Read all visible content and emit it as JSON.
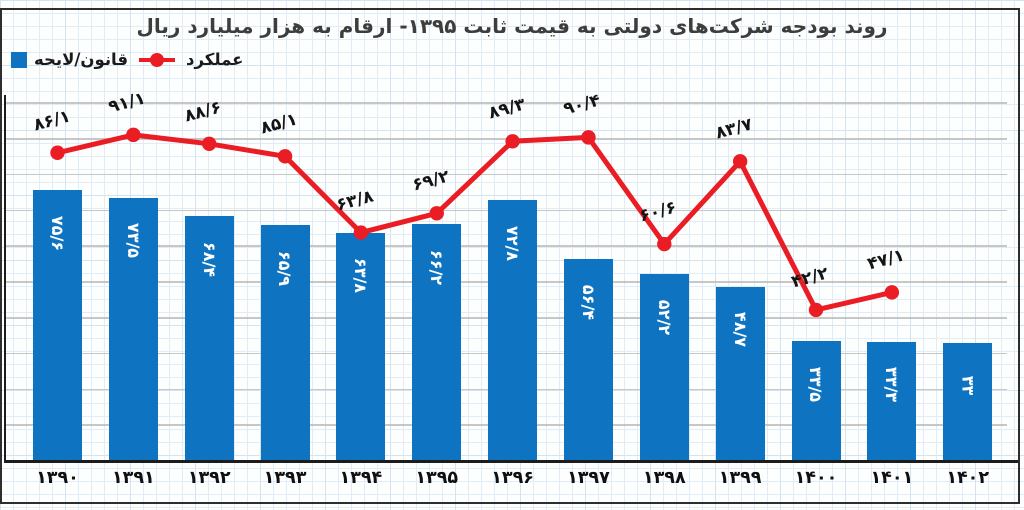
{
  "title": "روند بودجه شرکت‌های دولتی به قیمت ثابت ۱۳۹۵- ارقام به هزار میلیارد ریال",
  "colors": {
    "bar_blue": "#0e74c2",
    "line_red": "#ea1c24",
    "grid_gray": "#b4b4b4",
    "axis_black": "#1c1c1c",
    "title_gray": "#3d3d3d",
    "paper_blue": "#d5e3f1"
  },
  "legend": [
    {
      "label": "قانون/لایحه",
      "marker": "square-icon",
      "color": "#0e74c2"
    },
    {
      "label": "عملکرد",
      "marker": "line-dot-icon",
      "color": "#ea1c24"
    }
  ],
  "chart_data": {
    "type": "bar",
    "title": "روند بودجه شرکت‌های دولتی به قیمت ثابت ۱۳۹۵- ارقام به هزار میلیارد ریال",
    "unit_note": "ارقام به هزار میلیارد ریال",
    "categories": [
      "۱۳۹۰",
      "۱۳۹۱",
      "۱۳۹۲",
      "۱۳۹۳",
      "۱۳۹۴",
      "۱۳۹۵",
      "۱۳۹۶",
      "۱۳۹۷",
      "۱۳۹۸",
      "۱۳۹۹",
      "۱۴۰۰",
      "۱۴۰۱",
      "۱۴۰۲"
    ],
    "categories_latin": [
      1390,
      1391,
      1392,
      1393,
      1394,
      1395,
      1396,
      1397,
      1398,
      1399,
      1400,
      1401,
      1402
    ],
    "series": [
      {
        "name": "قانون/لایحه",
        "type": "bar",
        "values": [
          75.6,
          73.5,
          68.4,
          65.9,
          63.8,
          66.2,
          72.8,
          56.4,
          52.2,
          48.7,
          33.5,
          33.3,
          33
        ],
        "labels": [
          "۷۵/۶",
          "۷۳/۵",
          "۶۸/۴",
          "۶۵/۹",
          "۶۳/۸",
          "۶۶/۲",
          "۷۲/۸",
          "۵۶/۴",
          "۵۲/۲",
          "۴۸/۷",
          "۳۳/۵",
          "۳۳/۳",
          "۳۳"
        ]
      },
      {
        "name": "عملکرد",
        "type": "line",
        "values": [
          86.1,
          91.1,
          88.6,
          85.1,
          63.8,
          69.2,
          89.3,
          90.4,
          60.6,
          83.7,
          42.2,
          47.1
        ],
        "labels": [
          "۸۶/۱",
          "۹۱/۱",
          "۸۸/۶",
          "۸۵/۱",
          "۶۳/۸",
          "۶۹/۲",
          "۸۹/۳",
          "۹۰/۴",
          "۶۰/۶",
          "۸۳/۷",
          "۴۲/۲",
          "۴۷/۱"
        ]
      }
    ],
    "ylim": [
      0,
      100
    ],
    "gridline_step": 10,
    "grid": true,
    "legend_position": "top-left",
    "y_axis_labels_visible": false
  }
}
